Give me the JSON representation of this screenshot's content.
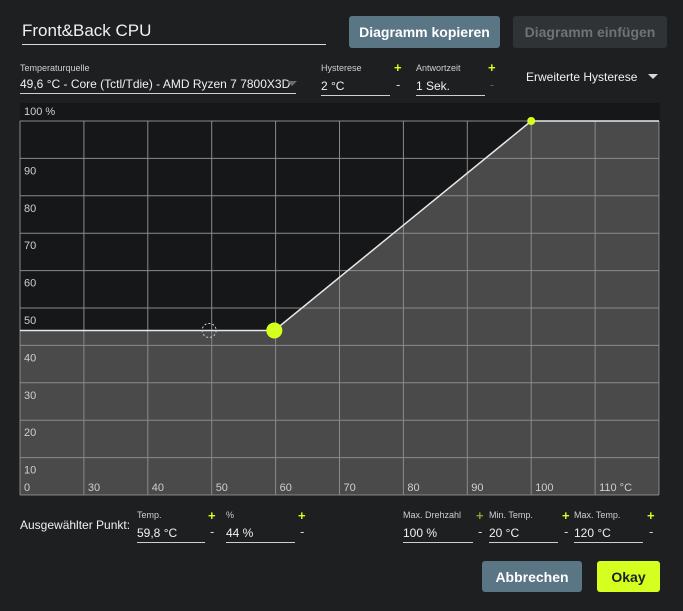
{
  "header": {
    "profile_name": "Front&Back CPU",
    "copy_button": "Diagramm kopieren",
    "paste_button": "Diagramm einfügen"
  },
  "source": {
    "label": "Temperaturquelle",
    "value": "49,6 °C - Core (Tctl/Tdie) - AMD Ryzen 7 7800X3D"
  },
  "hysteresis": {
    "label": "Hysterese",
    "value": "2 °C",
    "plus": "+",
    "minus": "-"
  },
  "response_time": {
    "label": "Antwortzeit",
    "value": "1 Sek.",
    "plus": "+",
    "minus": "-"
  },
  "extended_hysteresis": {
    "label": "Erweiterte Hysterese"
  },
  "chart_data": {
    "type": "line",
    "y_tick_labels": [
      "100 %",
      "90",
      "80",
      "70",
      "60",
      "50",
      "40",
      "30",
      "20",
      "10"
    ],
    "x_tick_labels": [
      "0",
      "30",
      "40",
      "50",
      "60",
      "70",
      "80",
      "90",
      "100",
      "110 °C"
    ],
    "xlim": [
      20,
      120
    ],
    "ylim": [
      0,
      100
    ],
    "grid": true,
    "series": [
      {
        "points": [
          [
            20,
            44
          ],
          [
            59.8,
            44
          ],
          [
            100,
            100
          ],
          [
            120,
            100
          ]
        ]
      }
    ],
    "selected_point": {
      "x": 59.8,
      "y": 44
    },
    "hysteresis_marker": {
      "x": 49.6,
      "y": 44
    },
    "colors": {
      "background": "#161718",
      "fill": "#4a4a4a",
      "grid": "#8a8a8a",
      "line": "#e8e8e8",
      "point": "#d4ff1f"
    }
  },
  "selected_point": {
    "label": "Ausgewählter Punkt:",
    "temp_label": "Temp.",
    "temp_value": "59,8 °C",
    "percent_label": "%",
    "percent_value": "44 %",
    "plus": "+",
    "minus": "-"
  },
  "limits": {
    "max_speed_label": "Max. Drehzahl",
    "max_speed_value": "100 %",
    "min_temp_label": "Min. Temp.",
    "min_temp_value": "20 °C",
    "max_temp_label": "Max. Temp.",
    "max_temp_value": "120 °C",
    "plus": "+",
    "minus": "-"
  },
  "footer": {
    "cancel_button": "Abbrechen",
    "ok_button": "Okay"
  }
}
